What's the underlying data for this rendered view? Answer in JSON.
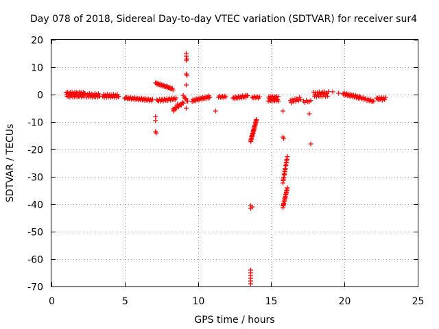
{
  "chart_data": {
    "type": "scatter",
    "title": "Day 078 of 2018, Sidereal Day-to-day VTEC variation (SDTVAR) for receiver sur4",
    "xlabel": "GPS time / hours",
    "ylabel": "SDTVAR / TECUs",
    "xlim": [
      0,
      25
    ],
    "ylim": [
      -70,
      20
    ],
    "xticks": [
      0,
      5,
      10,
      15,
      20,
      25
    ],
    "yticks": [
      -70,
      -60,
      -50,
      -40,
      -30,
      -20,
      -10,
      0,
      10,
      20
    ],
    "xtick_labels": [
      "0",
      "5",
      "10",
      "15",
      "20",
      "25"
    ],
    "ytick_labels": [
      "-70",
      "-60",
      "-50",
      "-40",
      "-30",
      "-20",
      "-10",
      "0",
      "10",
      "20"
    ],
    "grid": true,
    "marker": "plus",
    "color": "#ff0000",
    "series": [
      {
        "name": "sdtvar",
        "segments": [
          {
            "x0": 1.0,
            "x1": 2.3,
            "y0": 0.0,
            "y1": 0.0,
            "n": 36,
            "spread": 1.8
          },
          {
            "x0": 2.4,
            "x1": 3.3,
            "y0": -0.3,
            "y1": -0.3,
            "n": 20,
            "spread": 1.4
          },
          {
            "x0": 3.5,
            "x1": 4.6,
            "y0": -0.5,
            "y1": -0.5,
            "n": 22,
            "spread": 1.2
          },
          {
            "x0": 5.0,
            "x1": 6.9,
            "y0": -1.2,
            "y1": -2.0,
            "n": 34,
            "spread": 0.7
          },
          {
            "x0": 7.1,
            "x1": 8.3,
            "y0": 4.2,
            "y1": 2.0,
            "n": 24,
            "spread": 0.6
          },
          {
            "x0": 7.2,
            "x1": 8.5,
            "y0": -2.2,
            "y1": -1.5,
            "n": 22,
            "spread": 0.8
          },
          {
            "x0": 8.3,
            "x1": 9.0,
            "y0": -5.5,
            "y1": -3.0,
            "n": 12,
            "spread": 0.8
          },
          {
            "x0": 9.0,
            "x1": 9.3,
            "y0": -0.5,
            "y1": -2.5,
            "n": 6,
            "spread": 0.5
          },
          {
            "x0": 9.6,
            "x1": 10.8,
            "y0": -2.2,
            "y1": -0.8,
            "n": 24,
            "spread": 0.8
          },
          {
            "x0": 11.4,
            "x1": 11.9,
            "y0": -0.8,
            "y1": -0.8,
            "n": 8,
            "spread": 0.6
          },
          {
            "x0": 12.4,
            "x1": 13.4,
            "y0": -1.3,
            "y1": -0.5,
            "n": 18,
            "spread": 0.8
          },
          {
            "x0": 13.7,
            "x1": 14.2,
            "y0": -1.0,
            "y1": -1.0,
            "n": 8,
            "spread": 0.6
          },
          {
            "x0": 13.6,
            "x1": 14.0,
            "y0": -17.0,
            "y1": -9.0,
            "n": 34,
            "spread": 0.8
          },
          {
            "x0": 14.8,
            "x1": 15.5,
            "y0": -1.5,
            "y1": -1.5,
            "n": 22,
            "spread": 1.8
          },
          {
            "x0": 15.8,
            "x1": 16.1,
            "y0": -32.0,
            "y1": -22.5,
            "n": 24,
            "spread": 0.6
          },
          {
            "x0": 15.8,
            "x1": 16.1,
            "y0": -41.0,
            "y1": -34.0,
            "n": 24,
            "spread": 0.6
          },
          {
            "x0": 16.3,
            "x1": 17.0,
            "y0": -2.5,
            "y1": -1.5,
            "n": 12,
            "spread": 1.2
          },
          {
            "x0": 17.2,
            "x1": 17.7,
            "y0": -2.5,
            "y1": -2.5,
            "n": 6,
            "spread": 0.8
          },
          {
            "x0": 17.9,
            "x1": 18.9,
            "y0": 0.0,
            "y1": 0.2,
            "n": 22,
            "spread": 1.8
          },
          {
            "x0": 19.9,
            "x1": 21.0,
            "y0": 0.3,
            "y1": -1.0,
            "n": 24,
            "spread": 0.8
          },
          {
            "x0": 21.0,
            "x1": 22.0,
            "y0": -1.0,
            "y1": -2.5,
            "n": 16,
            "spread": 0.8
          },
          {
            "x0": 22.2,
            "x1": 22.8,
            "y0": -1.5,
            "y1": -1.5,
            "n": 12,
            "spread": 1.0
          }
        ],
        "points": [
          [
            7.1,
            -8.0
          ],
          [
            7.1,
            -9.5
          ],
          [
            7.1,
            -13.5
          ],
          [
            7.15,
            -14.0
          ],
          [
            8.35,
            -6.0
          ],
          [
            8.6,
            -3.5
          ],
          [
            9.2,
            15.0
          ],
          [
            9.2,
            14.0
          ],
          [
            9.25,
            13.0
          ],
          [
            9.2,
            12.5
          ],
          [
            9.2,
            7.5
          ],
          [
            9.25,
            7.0
          ],
          [
            9.2,
            3.5
          ],
          [
            9.2,
            -5.0
          ],
          [
            11.2,
            -6.0
          ],
          [
            13.6,
            -40.5
          ],
          [
            13.6,
            -41.5
          ],
          [
            13.7,
            -41.0
          ],
          [
            13.6,
            -64.0
          ],
          [
            13.6,
            -65.0
          ],
          [
            13.6,
            -66.0
          ],
          [
            13.6,
            -67.0
          ],
          [
            13.6,
            -68.0
          ],
          [
            13.6,
            -69.0
          ],
          [
            15.8,
            -6.0
          ],
          [
            15.8,
            -15.5
          ],
          [
            15.85,
            -16.0
          ],
          [
            17.6,
            -7.0
          ],
          [
            17.7,
            -18.0
          ],
          [
            19.2,
            1.0
          ],
          [
            19.6,
            0.5
          ]
        ]
      }
    ]
  }
}
